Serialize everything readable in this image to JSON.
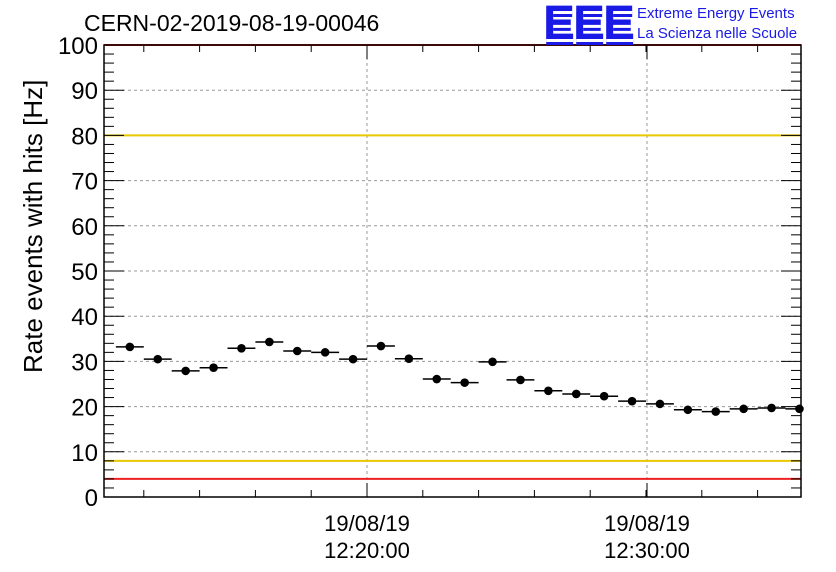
{
  "header": {
    "run_title": "CERN-02-2019-08-19-00046",
    "logo_text": "EEE",
    "org_line1": "Extreme Energy Events",
    "org_line2": "La Scienza nelle Scuole"
  },
  "colors": {
    "red_threshold": "#ee2222",
    "yellow_threshold": "#e8c800",
    "logo": "#1a1ae6"
  },
  "chart_data": {
    "type": "scatter",
    "title": "CERN-02-2019-08-19-00046",
    "ylabel": "Rate events with hits [Hz]",
    "xlabel": "",
    "ylim": [
      0,
      100
    ],
    "y_ticks": [
      "0",
      "10",
      "20",
      "30",
      "40",
      "50",
      "60",
      "70",
      "80",
      "90",
      "100"
    ],
    "x_ticks": [
      {
        "date": "19/08/19",
        "time": "12:20:00"
      },
      {
        "date": "19/08/19",
        "time": "12:30:00"
      }
    ],
    "grid": true,
    "reference_lines": [
      {
        "y": 100,
        "color": "red"
      },
      {
        "y": 80,
        "color": "yellow"
      },
      {
        "y": 8,
        "color": "yellow"
      },
      {
        "y": 4,
        "color": "red"
      }
    ],
    "bins_per_10_min": 10,
    "x_start_bins_before_1220": 9,
    "values": [
      33.2,
      30.5,
      27.9,
      28.6,
      32.9,
      34.3,
      32.3,
      32.0,
      30.5,
      33.4,
      30.6,
      26.1,
      25.3,
      29.9,
      25.9,
      23.5,
      22.8,
      22.3,
      21.2,
      20.6,
      19.3,
      18.9,
      19.5,
      19.7,
      19.5
    ]
  }
}
